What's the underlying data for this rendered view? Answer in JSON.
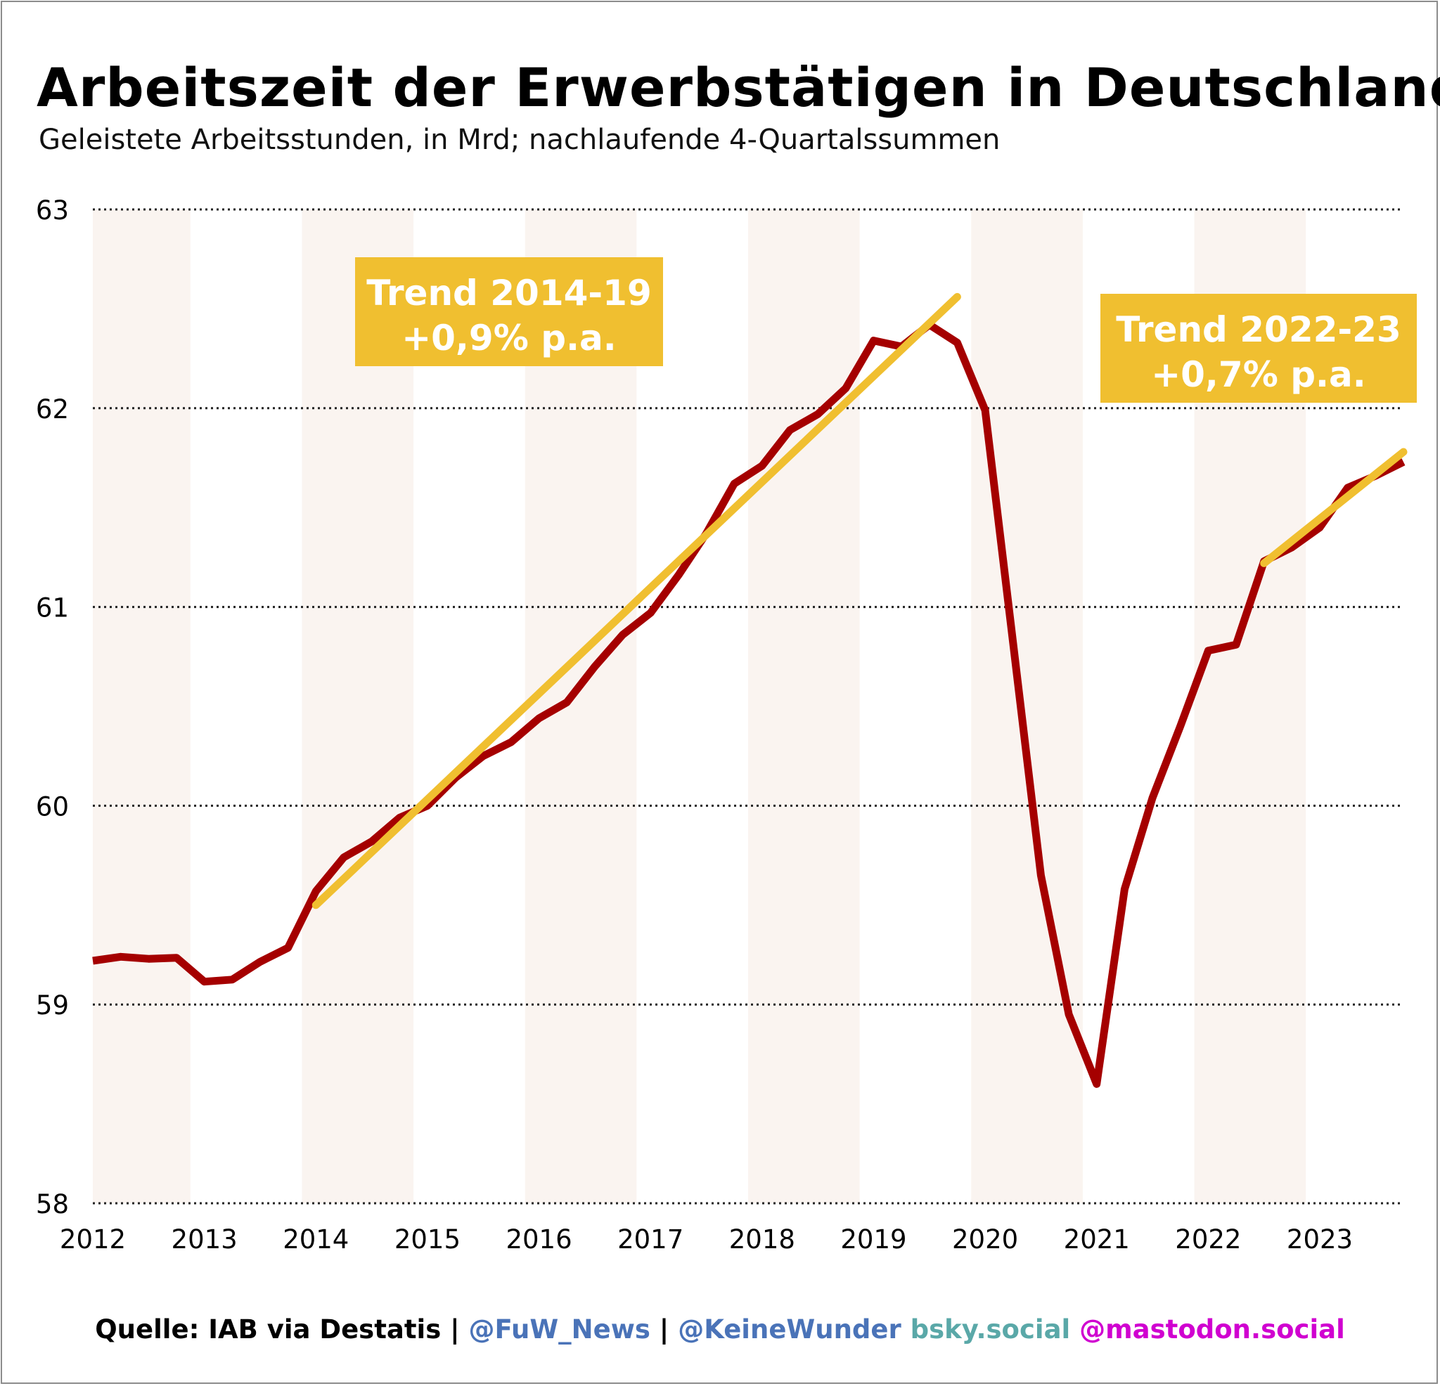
{
  "header": {
    "title": "Arbeitszeit der Erwerbstätigen in Deutschland",
    "subtitle": "Geleistete Arbeitsstunden, in Mrd; nachlaufende 4-Quartalssummen"
  },
  "footer": {
    "source": "Quelle: IAB via Destatis | ",
    "fuw": "@FuW_News",
    "sep": " | ",
    "keinewunder": "@KeineWunder",
    "bsky": " bsky.social",
    "mastodon": " @mastodon.social"
  },
  "colors": {
    "line": "#a50000",
    "trend": "#f0bf30",
    "band": "#faf4f0",
    "fuw": "#4a73b8",
    "keinewunder": "#4a73b8",
    "bsky": "#5aa8a8",
    "mastodon": "#d000d0"
  },
  "chart_data": {
    "type": "line",
    "title": "Arbeitszeit der Erwerbstätigen in Deutschland",
    "subtitle": "Geleistete Arbeitsstunden, in Mrd; nachlaufende 4-Quartalssummen",
    "ylabel": "Geleistete Arbeitsstunden, in Mrd",
    "xlabel": "",
    "xlim": [
      2012,
      2023.75
    ],
    "ylim": [
      58,
      63
    ],
    "yticks": [
      58,
      59,
      60,
      61,
      62,
      63
    ],
    "xtick_labels": [
      "2012",
      "2013",
      "2014",
      "2015",
      "2016",
      "2017",
      "2018",
      "2019",
      "2020",
      "2021",
      "2022",
      "2023"
    ],
    "grid": "horizontal dotted",
    "series": [
      {
        "name": "Arbeitsstunden",
        "x": [
          2012.0,
          2012.25,
          2012.5,
          2012.75,
          2013.0,
          2013.25,
          2013.5,
          2013.75,
          2014.0,
          2014.25,
          2014.5,
          2014.75,
          2015.0,
          2015.25,
          2015.5,
          2015.75,
          2016.0,
          2016.25,
          2016.5,
          2016.75,
          2017.0,
          2017.25,
          2017.5,
          2017.75,
          2018.0,
          2018.25,
          2018.5,
          2018.75,
          2019.0,
          2019.25,
          2019.5,
          2019.75,
          2020.0,
          2020.25,
          2020.5,
          2020.75,
          2021.0,
          2021.25,
          2021.5,
          2021.75,
          2022.0,
          2022.25,
          2022.5,
          2022.75,
          2023.0,
          2023.25,
          2023.5,
          2023.75
        ],
        "values": [
          59.22,
          59.24,
          59.23,
          59.235,
          59.115,
          59.125,
          59.215,
          59.285,
          59.57,
          59.74,
          59.82,
          59.94,
          60.0,
          60.14,
          60.25,
          60.32,
          60.44,
          60.52,
          60.7,
          60.86,
          60.97,
          61.16,
          61.37,
          61.62,
          61.71,
          61.89,
          61.97,
          62.1,
          62.34,
          62.31,
          62.42,
          62.33,
          61.99,
          60.82,
          59.65,
          58.95,
          58.6,
          59.58,
          60.04,
          60.4,
          60.78,
          60.81,
          61.23,
          61.3,
          61.4,
          61.6,
          61.66,
          61.73
        ]
      },
      {
        "name": "Trend 2014-19",
        "x": [
          2014.0,
          2019.75
        ],
        "values": [
          59.5,
          62.56
        ]
      },
      {
        "name": "Trend 2022-23",
        "x": [
          2022.5,
          2023.75
        ],
        "values": [
          61.22,
          61.78
        ]
      }
    ],
    "annotations": [
      {
        "line1": "Trend 2014-19",
        "line2": "+0,9% p.a."
      },
      {
        "line1": "Trend 2022-23",
        "line2": "+0,7% p.a."
      }
    ]
  }
}
